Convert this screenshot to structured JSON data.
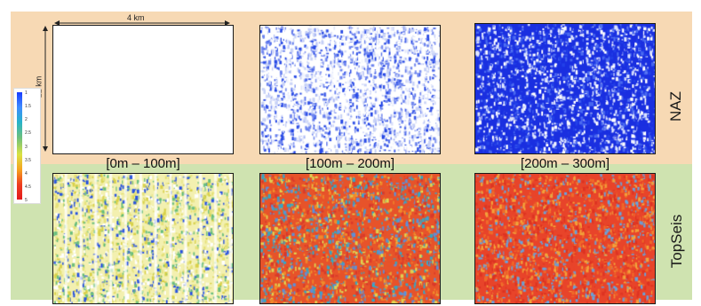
{
  "dimensions": {
    "width_label": "4 km",
    "height_label": "22 km"
  },
  "rows": [
    {
      "label": "NAZ",
      "id": "naz"
    },
    {
      "label": "TopSeis",
      "id": "topseis"
    }
  ],
  "columns": [
    {
      "range": "[0m – 100m]"
    },
    {
      "range": "[100m – 200m]"
    },
    {
      "range": "[200m – 300m]"
    }
  ],
  "legend": {
    "ticks": [
      "1",
      "1.5",
      "2",
      "2.5",
      "3",
      "3.5",
      "4",
      "4.5",
      "5"
    ]
  },
  "colors": {
    "top_band": "#f7d9b4",
    "bottom_band": "#cfe3b0",
    "scale_low": "#1a3cff",
    "scale_high": "#e31a1c"
  }
}
